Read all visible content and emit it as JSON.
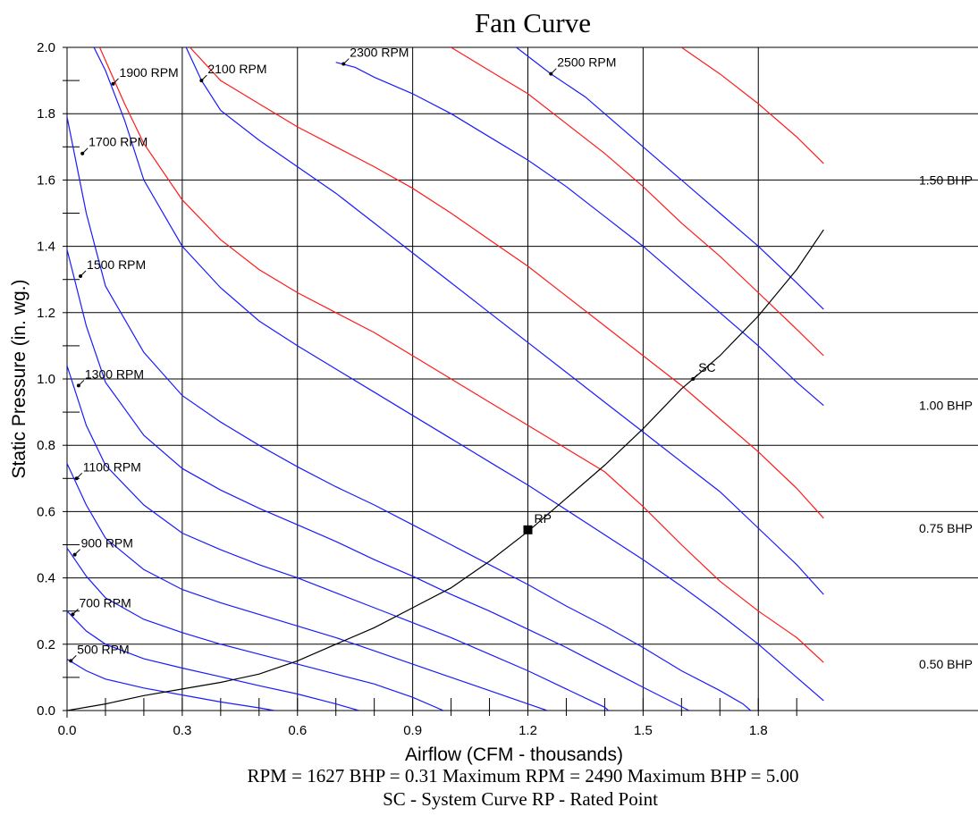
{
  "chart_data": {
    "type": "line",
    "title": "Fan Curve",
    "xlabel": "Airflow (CFM - thousands)",
    "ylabel": "Static Pressure (in. wg.)",
    "xlim": [
      0,
      1.97
    ],
    "ylim": [
      0,
      2.0
    ],
    "x_ticks": [
      "0.0",
      "0.3",
      "0.6",
      "0.9",
      "1.2",
      "1.5",
      "1.8"
    ],
    "y_ticks": [
      "0.0",
      "0.2",
      "0.4",
      "0.6",
      "0.8",
      "1.0",
      "1.2",
      "1.4",
      "1.6",
      "1.8",
      "2.0"
    ],
    "grid": true,
    "colors": {
      "rpm_curve": "#1a1aff",
      "bhp_curve": "#ff1a1a",
      "system_curve": "#000000"
    },
    "rpm_curves": [
      {
        "label": "500 RPM",
        "label_at": [
          0.01,
          0.15
        ],
        "points": [
          [
            0,
            0.155
          ],
          [
            0.05,
            0.12
          ],
          [
            0.1,
            0.095
          ],
          [
            0.2,
            0.068
          ],
          [
            0.3,
            0.047
          ],
          [
            0.4,
            0.026
          ],
          [
            0.5,
            0.008
          ],
          [
            0.54,
            0
          ]
        ]
      },
      {
        "label": "700 RPM",
        "label_at": [
          0.015,
          0.29
        ],
        "points": [
          [
            0,
            0.3
          ],
          [
            0.05,
            0.24
          ],
          [
            0.1,
            0.2
          ],
          [
            0.2,
            0.156
          ],
          [
            0.3,
            0.128
          ],
          [
            0.4,
            0.102
          ],
          [
            0.5,
            0.075
          ],
          [
            0.6,
            0.05
          ],
          [
            0.7,
            0.02
          ],
          [
            0.76,
            0
          ]
        ]
      },
      {
        "label": "900 RPM",
        "label_at": [
          0.02,
          0.47
        ],
        "points": [
          [
            0,
            0.49
          ],
          [
            0.05,
            0.405
          ],
          [
            0.1,
            0.34
          ],
          [
            0.2,
            0.275
          ],
          [
            0.3,
            0.235
          ],
          [
            0.4,
            0.2
          ],
          [
            0.5,
            0.17
          ],
          [
            0.6,
            0.14
          ],
          [
            0.7,
            0.11
          ],
          [
            0.8,
            0.08
          ],
          [
            0.9,
            0.04
          ],
          [
            0.98,
            0
          ]
        ]
      },
      {
        "label": "1100 RPM",
        "label_at": [
          0.025,
          0.7
        ],
        "points": [
          [
            0,
            0.745
          ],
          [
            0.05,
            0.62
          ],
          [
            0.1,
            0.52
          ],
          [
            0.2,
            0.425
          ],
          [
            0.3,
            0.365
          ],
          [
            0.4,
            0.325
          ],
          [
            0.5,
            0.29
          ],
          [
            0.6,
            0.255
          ],
          [
            0.7,
            0.22
          ],
          [
            0.8,
            0.18
          ],
          [
            0.9,
            0.14
          ],
          [
            1.0,
            0.1
          ],
          [
            1.1,
            0.06
          ],
          [
            1.2,
            0.02
          ],
          [
            1.25,
            0
          ]
        ]
      },
      {
        "label": "1300 RPM",
        "label_at": [
          0.03,
          0.98
        ],
        "points": [
          [
            0,
            1.04
          ],
          [
            0.05,
            0.86
          ],
          [
            0.1,
            0.74
          ],
          [
            0.2,
            0.62
          ],
          [
            0.3,
            0.535
          ],
          [
            0.4,
            0.485
          ],
          [
            0.5,
            0.44
          ],
          [
            0.6,
            0.4
          ],
          [
            0.7,
            0.355
          ],
          [
            0.8,
            0.31
          ],
          [
            0.9,
            0.265
          ],
          [
            1.0,
            0.22
          ],
          [
            1.1,
            0.17
          ],
          [
            1.2,
            0.12
          ],
          [
            1.3,
            0.065
          ],
          [
            1.4,
            0.01
          ],
          [
            1.41,
            0
          ]
        ]
      },
      {
        "label": "1500 RPM",
        "label_at": [
          0.035,
          1.31
        ],
        "points": [
          [
            0,
            1.39
          ],
          [
            0.05,
            1.16
          ],
          [
            0.1,
            0.99
          ],
          [
            0.2,
            0.83
          ],
          [
            0.3,
            0.73
          ],
          [
            0.4,
            0.665
          ],
          [
            0.5,
            0.61
          ],
          [
            0.6,
            0.56
          ],
          [
            0.7,
            0.51
          ],
          [
            0.8,
            0.455
          ],
          [
            0.9,
            0.405
          ],
          [
            1.0,
            0.35
          ],
          [
            1.1,
            0.3
          ],
          [
            1.2,
            0.245
          ],
          [
            1.3,
            0.19
          ],
          [
            1.4,
            0.13
          ],
          [
            1.5,
            0.07
          ],
          [
            1.62,
            0
          ]
        ]
      },
      {
        "label": "1700 RPM",
        "label_at": [
          0.04,
          1.68
        ],
        "points": [
          [
            0,
            1.79
          ],
          [
            0.05,
            1.5
          ],
          [
            0.1,
            1.28
          ],
          [
            0.2,
            1.08
          ],
          [
            0.3,
            0.95
          ],
          [
            0.4,
            0.87
          ],
          [
            0.5,
            0.8
          ],
          [
            0.6,
            0.735
          ],
          [
            0.7,
            0.675
          ],
          [
            0.8,
            0.62
          ],
          [
            0.9,
            0.56
          ],
          [
            1.0,
            0.5
          ],
          [
            1.1,
            0.44
          ],
          [
            1.2,
            0.38
          ],
          [
            1.3,
            0.315
          ],
          [
            1.4,
            0.255
          ],
          [
            1.5,
            0.19
          ],
          [
            1.6,
            0.12
          ],
          [
            1.7,
            0.06
          ],
          [
            1.76,
            0.02
          ],
          [
            1.78,
            0
          ]
        ]
      },
      {
        "label": "1900 RPM",
        "label_at": [
          0.12,
          1.89
        ],
        "points": [
          [
            0.07,
            2.0
          ],
          [
            0.1,
            1.93
          ],
          [
            0.15,
            1.78
          ],
          [
            0.2,
            1.6
          ],
          [
            0.3,
            1.4
          ],
          [
            0.4,
            1.275
          ],
          [
            0.5,
            1.175
          ],
          [
            0.6,
            1.1
          ],
          [
            0.7,
            1.03
          ],
          [
            0.8,
            0.96
          ],
          [
            0.9,
            0.89
          ],
          [
            1.0,
            0.82
          ],
          [
            1.1,
            0.75
          ],
          [
            1.2,
            0.68
          ],
          [
            1.3,
            0.605
          ],
          [
            1.4,
            0.53
          ],
          [
            1.5,
            0.455
          ],
          [
            1.6,
            0.375
          ],
          [
            1.7,
            0.29
          ],
          [
            1.8,
            0.2
          ],
          [
            1.9,
            0.1
          ],
          [
            1.97,
            0.03
          ]
        ]
      },
      {
        "label": "2100 RPM",
        "label_at": [
          0.35,
          1.9
        ],
        "points": [
          [
            0.31,
            2.0
          ],
          [
            0.35,
            1.9
          ],
          [
            0.4,
            1.81
          ],
          [
            0.5,
            1.72
          ],
          [
            0.6,
            1.64
          ],
          [
            0.7,
            1.56
          ],
          [
            0.8,
            1.47
          ],
          [
            0.9,
            1.38
          ],
          [
            1.0,
            1.29
          ],
          [
            1.1,
            1.2
          ],
          [
            1.2,
            1.11
          ],
          [
            1.3,
            1.02
          ],
          [
            1.4,
            0.93
          ],
          [
            1.5,
            0.84
          ],
          [
            1.6,
            0.75
          ],
          [
            1.7,
            0.66
          ],
          [
            1.8,
            0.55
          ],
          [
            1.9,
            0.44
          ],
          [
            1.97,
            0.35
          ]
        ]
      },
      {
        "label": "2300 RPM",
        "label_at": [
          0.72,
          1.95
        ],
        "points": [
          [
            0.7,
            1.955
          ],
          [
            0.75,
            1.94
          ],
          [
            0.8,
            1.91
          ],
          [
            0.9,
            1.86
          ],
          [
            1.0,
            1.8
          ],
          [
            1.1,
            1.73
          ],
          [
            1.2,
            1.66
          ],
          [
            1.3,
            1.58
          ],
          [
            1.4,
            1.49
          ],
          [
            1.5,
            1.4
          ],
          [
            1.6,
            1.3
          ],
          [
            1.7,
            1.2
          ],
          [
            1.8,
            1.1
          ],
          [
            1.9,
            0.99
          ],
          [
            1.97,
            0.92
          ]
        ]
      },
      {
        "label": "2500 RPM",
        "label_at": [
          1.26,
          1.92
        ],
        "points": [
          [
            1.17,
            2.0
          ],
          [
            1.26,
            1.92
          ],
          [
            1.35,
            1.85
          ],
          [
            1.4,
            1.8
          ],
          [
            1.5,
            1.7
          ],
          [
            1.6,
            1.6
          ],
          [
            1.7,
            1.5
          ],
          [
            1.8,
            1.4
          ],
          [
            1.9,
            1.29
          ],
          [
            1.97,
            1.21
          ]
        ]
      }
    ],
    "bhp_curves": [
      {
        "label": "0.50 BHP",
        "label_at": [
          1.97,
          0.14
        ],
        "points": [
          [
            0.085,
            2.0
          ],
          [
            0.1,
            1.96
          ],
          [
            0.15,
            1.83
          ],
          [
            0.2,
            1.71
          ],
          [
            0.3,
            1.54
          ],
          [
            0.4,
            1.42
          ],
          [
            0.5,
            1.33
          ],
          [
            0.6,
            1.26
          ],
          [
            0.7,
            1.2
          ],
          [
            0.8,
            1.14
          ],
          [
            0.9,
            1.07
          ],
          [
            1.0,
            1.0
          ],
          [
            1.1,
            0.93
          ],
          [
            1.2,
            0.86
          ],
          [
            1.3,
            0.79
          ],
          [
            1.4,
            0.72
          ],
          [
            1.5,
            0.615
          ],
          [
            1.6,
            0.5
          ],
          [
            1.7,
            0.39
          ],
          [
            1.8,
            0.3
          ],
          [
            1.9,
            0.22
          ],
          [
            1.97,
            0.145
          ]
        ]
      },
      {
        "label": "0.75 BHP",
        "label_at": [
          1.97,
          0.55
        ],
        "points": [
          [
            0.32,
            2.0
          ],
          [
            0.4,
            1.9
          ],
          [
            0.5,
            1.83
          ],
          [
            0.6,
            1.76
          ],
          [
            0.7,
            1.7
          ],
          [
            0.8,
            1.64
          ],
          [
            0.9,
            1.575
          ],
          [
            1.0,
            1.5
          ],
          [
            1.1,
            1.42
          ],
          [
            1.2,
            1.34
          ],
          [
            1.3,
            1.25
          ],
          [
            1.4,
            1.16
          ],
          [
            1.5,
            1.07
          ],
          [
            1.6,
            0.98
          ],
          [
            1.7,
            0.88
          ],
          [
            1.8,
            0.78
          ],
          [
            1.9,
            0.67
          ],
          [
            1.97,
            0.58
          ]
        ]
      },
      {
        "label": "1.00 BHP",
        "label_at": [
          1.97,
          0.92
        ],
        "points": [
          [
            1.0,
            2.0
          ],
          [
            1.1,
            1.93
          ],
          [
            1.2,
            1.86
          ],
          [
            1.3,
            1.77
          ],
          [
            1.4,
            1.68
          ],
          [
            1.5,
            1.58
          ],
          [
            1.6,
            1.47
          ],
          [
            1.7,
            1.37
          ],
          [
            1.8,
            1.26
          ],
          [
            1.9,
            1.15
          ],
          [
            1.97,
            1.07
          ]
        ]
      },
      {
        "label": "1.50 BHP",
        "label_at": [
          1.97,
          1.6
        ],
        "points": [
          [
            1.6,
            2.0
          ],
          [
            1.7,
            1.92
          ],
          [
            1.8,
            1.83
          ],
          [
            1.9,
            1.73
          ],
          [
            1.97,
            1.65
          ]
        ]
      }
    ],
    "system_curve": {
      "label": "SC",
      "label_at": [
        1.63,
        1.0
      ],
      "points": [
        [
          0,
          0
        ],
        [
          0.1,
          0.02
        ],
        [
          0.2,
          0.045
        ],
        [
          0.3,
          0.065
        ],
        [
          0.4,
          0.085
        ],
        [
          0.5,
          0.11
        ],
        [
          0.6,
          0.15
        ],
        [
          0.7,
          0.2
        ],
        [
          0.8,
          0.25
        ],
        [
          0.9,
          0.31
        ],
        [
          1.0,
          0.37
        ],
        [
          1.1,
          0.45
        ],
        [
          1.2,
          0.54
        ],
        [
          1.3,
          0.64
        ],
        [
          1.4,
          0.74
        ],
        [
          1.5,
          0.85
        ],
        [
          1.6,
          0.97
        ],
        [
          1.63,
          1.0
        ],
        [
          1.7,
          1.07
        ],
        [
          1.8,
          1.19
        ],
        [
          1.9,
          1.33
        ],
        [
          1.97,
          1.45
        ]
      ]
    },
    "rated_point": {
      "label": "RP",
      "x": 1.2,
      "y": 0.545
    }
  },
  "footer": {
    "line1": "RPM = 1627  BHP = 0.31  Maximum RPM = 2490  Maximum BHP = 5.00",
    "line2": "SC - System Curve  RP - Rated Point"
  }
}
